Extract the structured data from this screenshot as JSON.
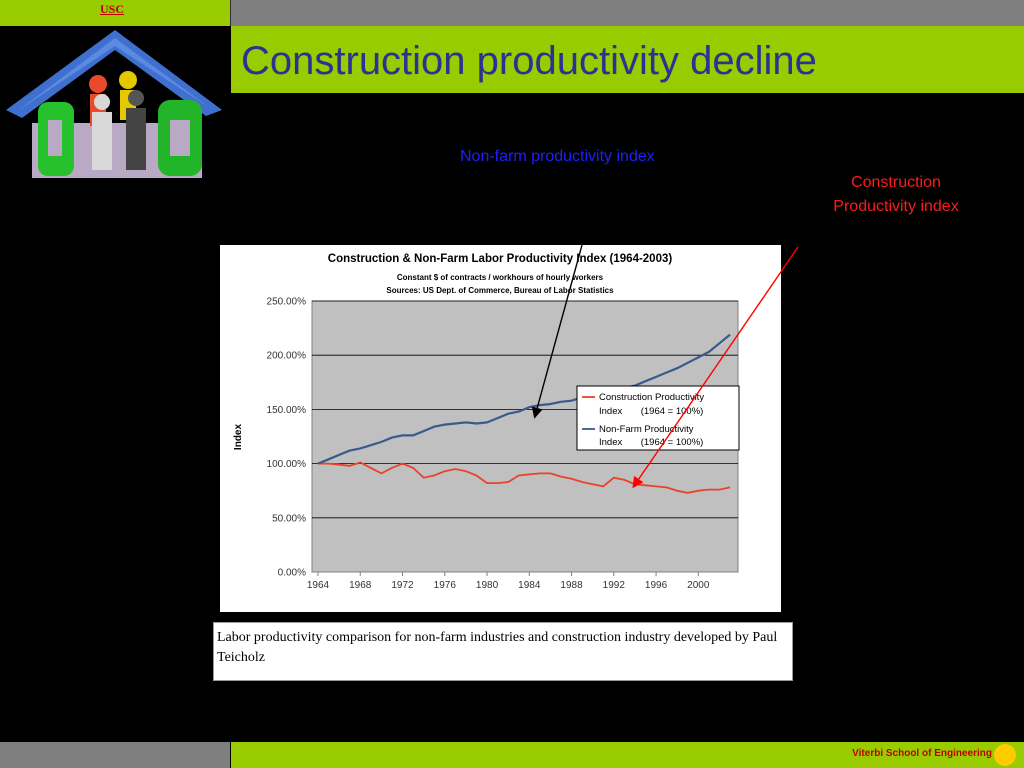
{
  "header": {
    "usc_label": "USC",
    "title": "Construction productivity decline"
  },
  "annotations": {
    "nonfarm": "Non-farm productivity index",
    "construction_line1": "Construction",
    "construction_line2": "Productivity index"
  },
  "caption": "Labor productivity comparison for non-farm industries and construction industry developed by Paul Teicholz",
  "footer": {
    "label": "Viterbi School of Engineering"
  },
  "colors": {
    "accent_green": "#99cc00",
    "title_blue": "#2e3192",
    "construction_series": "#e8432a",
    "nonfarm_series": "#3a5a8c",
    "plot_bg": "#c0c0c0"
  },
  "chart_data": {
    "type": "line",
    "title": "Construction & Non-Farm Labor Productivity Index (1964-2003)",
    "subtitle_lines": [
      "Constant $ of contracts / workhours of hourly workers",
      "Sources: US Dept. of Commerce, Bureau of Labor Statistics"
    ],
    "xlabel": "",
    "ylabel": "Index",
    "xlim": [
      1964,
      2003
    ],
    "ylim": [
      0,
      250
    ],
    "x_ticks": [
      "1964",
      "1968",
      "1972",
      "1976",
      "1980",
      "1984",
      "1988",
      "1992",
      "1996",
      "2000"
    ],
    "y_ticks": [
      "0.00%",
      "50.00%",
      "100.00%",
      "150.00%",
      "200.00%",
      "250.00%"
    ],
    "grid": true,
    "legend_position": "right",
    "x": [
      1964,
      1965,
      1966,
      1967,
      1968,
      1969,
      1970,
      1971,
      1972,
      1973,
      1974,
      1975,
      1976,
      1977,
      1978,
      1979,
      1980,
      1981,
      1982,
      1983,
      1984,
      1985,
      1986,
      1987,
      1988,
      1989,
      1990,
      1991,
      1992,
      1993,
      1994,
      1995,
      1996,
      1997,
      1998,
      1999,
      2000,
      2001,
      2002,
      2003
    ],
    "series": [
      {
        "name": "Construction Productivity Index",
        "legend_lines": [
          "Construction Productivity",
          "Index       (1964 = 100%)"
        ],
        "values": [
          100,
          100,
          99,
          98,
          101,
          96,
          91,
          96,
          100,
          96,
          87,
          89,
          93,
          95,
          93,
          89,
          82,
          82,
          83,
          89,
          90,
          91,
          91,
          88,
          86,
          83,
          81,
          79,
          87,
          85,
          81,
          80,
          79,
          78,
          75,
          73,
          75,
          76,
          76,
          78
        ]
      },
      {
        "name": "Non-Farm Productivity Index",
        "legend_lines": [
          "Non-Farm Productivity",
          "Index       (1964 = 100%)"
        ],
        "values": [
          100,
          104,
          108,
          112,
          114,
          117,
          120,
          124,
          126,
          126,
          130,
          134,
          136,
          137,
          138,
          137,
          138,
          142,
          146,
          148,
          152,
          154,
          155,
          157,
          158,
          161,
          163,
          165,
          168,
          170,
          172,
          176,
          180,
          184,
          188,
          193,
          198,
          203,
          211,
          219
        ]
      }
    ]
  }
}
